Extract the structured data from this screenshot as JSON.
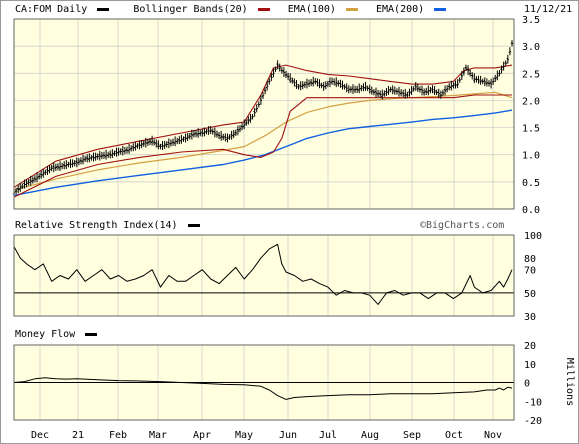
{
  "header": {
    "symbol_label": "CA:FOM Daily",
    "bb_label": "Bollinger Bands(20)",
    "ema100_label": "EMA(100)",
    "ema200_label": "EMA(200)",
    "date": "11/12/21"
  },
  "rsi_panel": {
    "title": "Relative Strength Index(14)",
    "watermark": "©BigCharts.com"
  },
  "mf_panel": {
    "title": "Money Flow",
    "unit_label": "Millions"
  },
  "colors": {
    "price": "#000000",
    "bollinger": "#a01010",
    "ema100": "#d4a040",
    "ema200": "#1060e0",
    "rsi": "#000000",
    "moneyflow": "#000000",
    "panel_bg": "#ffffe0"
  },
  "chart_data": [
    {
      "type": "candlestick",
      "title": "CA:FOM Daily",
      "ylim": [
        0.0,
        3.5
      ],
      "yticks": [
        "0.0",
        "0.5",
        "1.0",
        "1.5",
        "2.0",
        "2.5",
        "3.0",
        "3.5"
      ],
      "x_tick_labels": [
        "Dec",
        "21",
        "Feb",
        "Mar",
        "Apr",
        "May",
        "Jun",
        "Jul",
        "Aug",
        "Sep",
        "Oct",
        "Nov"
      ],
      "grid": true,
      "legend_placement": "top",
      "series": [
        {
          "name": "CA:FOM Daily",
          "kind": "close_points",
          "points": [
            [
              0,
              0.3
            ],
            [
              5,
              0.45
            ],
            [
              10,
              0.55
            ],
            [
              14,
              0.65
            ],
            [
              18,
              0.75
            ],
            [
              22,
              0.78
            ],
            [
              26,
              0.82
            ],
            [
              30,
              0.85
            ],
            [
              34,
              0.92
            ],
            [
              38,
              0.95
            ],
            [
              42,
              0.98
            ],
            [
              46,
              1.0
            ],
            [
              50,
              1.05
            ],
            [
              54,
              1.08
            ],
            [
              58,
              1.15
            ],
            [
              62,
              1.2
            ],
            [
              66,
              1.25
            ],
            [
              70,
              1.15
            ],
            [
              74,
              1.2
            ],
            [
              78,
              1.25
            ],
            [
              82,
              1.3
            ],
            [
              86,
              1.38
            ],
            [
              90,
              1.4
            ],
            [
              94,
              1.45
            ],
            [
              98,
              1.35
            ],
            [
              102,
              1.3
            ],
            [
              106,
              1.4
            ],
            [
              110,
              1.55
            ],
            [
              114,
              1.7
            ],
            [
              118,
              2.0
            ],
            [
              122,
              2.35
            ],
            [
              126,
              2.65
            ],
            [
              128,
              2.55
            ],
            [
              132,
              2.4
            ],
            [
              136,
              2.25
            ],
            [
              140,
              2.3
            ],
            [
              144,
              2.35
            ],
            [
              148,
              2.25
            ],
            [
              152,
              2.35
            ],
            [
              156,
              2.3
            ],
            [
              160,
              2.2
            ],
            [
              164,
              2.2
            ],
            [
              168,
              2.25
            ],
            [
              172,
              2.15
            ],
            [
              176,
              2.1
            ],
            [
              180,
              2.2
            ],
            [
              184,
              2.15
            ],
            [
              188,
              2.1
            ],
            [
              192,
              2.25
            ],
            [
              196,
              2.15
            ],
            [
              200,
              2.2
            ],
            [
              204,
              2.1
            ],
            [
              208,
              2.25
            ],
            [
              212,
              2.3
            ],
            [
              216,
              2.6
            ],
            [
              220,
              2.4
            ],
            [
              224,
              2.35
            ],
            [
              228,
              2.3
            ],
            [
              232,
              2.5
            ],
            [
              236,
              2.75
            ],
            [
              238,
              3.05
            ]
          ]
        },
        {
          "name": "Bollinger Bands(20) upper",
          "points": [
            [
              0,
              0.4
            ],
            [
              20,
              0.88
            ],
            [
              40,
              1.1
            ],
            [
              60,
              1.25
            ],
            [
              80,
              1.4
            ],
            [
              100,
              1.55
            ],
            [
              110,
              1.6
            ],
            [
              118,
              2.1
            ],
            [
              124,
              2.6
            ],
            [
              130,
              2.65
            ],
            [
              140,
              2.55
            ],
            [
              150,
              2.48
            ],
            [
              160,
              2.45
            ],
            [
              170,
              2.4
            ],
            [
              180,
              2.35
            ],
            [
              190,
              2.3
            ],
            [
              200,
              2.3
            ],
            [
              210,
              2.35
            ],
            [
              215,
              2.55
            ],
            [
              220,
              2.6
            ],
            [
              230,
              2.6
            ],
            [
              238,
              2.65
            ]
          ]
        },
        {
          "name": "Bollinger Bands(20) lower",
          "points": [
            [
              0,
              0.22
            ],
            [
              20,
              0.6
            ],
            [
              40,
              0.82
            ],
            [
              60,
              0.95
            ],
            [
              80,
              1.05
            ],
            [
              100,
              1.1
            ],
            [
              110,
              1.0
            ],
            [
              118,
              0.95
            ],
            [
              124,
              1.05
            ],
            [
              128,
              1.3
            ],
            [
              132,
              1.8
            ],
            [
              140,
              2.05
            ],
            [
              150,
              2.05
            ],
            [
              160,
              2.05
            ],
            [
              170,
              2.05
            ],
            [
              180,
              2.05
            ],
            [
              190,
              2.05
            ],
            [
              200,
              2.05
            ],
            [
              210,
              2.05
            ],
            [
              220,
              2.1
            ],
            [
              230,
              2.1
            ],
            [
              238,
              2.1
            ]
          ]
        },
        {
          "name": "EMA(100)",
          "points": [
            [
              0,
              0.35
            ],
            [
              20,
              0.55
            ],
            [
              40,
              0.72
            ],
            [
              60,
              0.85
            ],
            [
              80,
              0.95
            ],
            [
              100,
              1.08
            ],
            [
              110,
              1.15
            ],
            [
              120,
              1.35
            ],
            [
              130,
              1.6
            ],
            [
              140,
              1.78
            ],
            [
              150,
              1.88
            ],
            [
              160,
              1.95
            ],
            [
              170,
              2.0
            ],
            [
              180,
              2.03
            ],
            [
              190,
              2.05
            ],
            [
              200,
              2.07
            ],
            [
              210,
              2.09
            ],
            [
              220,
              2.12
            ],
            [
              230,
              2.15
            ],
            [
              238,
              2.05
            ]
          ]
        },
        {
          "name": "EMA(200)",
          "points": [
            [
              0,
              0.25
            ],
            [
              20,
              0.4
            ],
            [
              40,
              0.52
            ],
            [
              60,
              0.62
            ],
            [
              80,
              0.72
            ],
            [
              100,
              0.82
            ],
            [
              110,
              0.9
            ],
            [
              120,
              1.0
            ],
            [
              130,
              1.15
            ],
            [
              140,
              1.3
            ],
            [
              150,
              1.4
            ],
            [
              160,
              1.48
            ],
            [
              170,
              1.52
            ],
            [
              180,
              1.56
            ],
            [
              190,
              1.6
            ],
            [
              200,
              1.65
            ],
            [
              210,
              1.68
            ],
            [
              220,
              1.72
            ],
            [
              230,
              1.77
            ],
            [
              238,
              1.82
            ]
          ]
        }
      ]
    },
    {
      "type": "line",
      "title": "Relative Strength Index(14)",
      "ylim": [
        0,
        100
      ],
      "yticks": [
        "30",
        "50",
        "70",
        "80",
        "100"
      ],
      "reference_line": 50,
      "series": [
        {
          "name": "Relative Strength Index(14)",
          "points": [
            [
              0,
              90
            ],
            [
              3,
              80
            ],
            [
              6,
              75
            ],
            [
              10,
              70
            ],
            [
              14,
              75
            ],
            [
              18,
              60
            ],
            [
              22,
              65
            ],
            [
              26,
              62
            ],
            [
              30,
              70
            ],
            [
              34,
              60
            ],
            [
              38,
              65
            ],
            [
              42,
              70
            ],
            [
              46,
              62
            ],
            [
              50,
              65
            ],
            [
              54,
              60
            ],
            [
              58,
              62
            ],
            [
              62,
              65
            ],
            [
              66,
              70
            ],
            [
              70,
              55
            ],
            [
              74,
              65
            ],
            [
              78,
              60
            ],
            [
              82,
              60
            ],
            [
              86,
              65
            ],
            [
              90,
              70
            ],
            [
              94,
              62
            ],
            [
              98,
              58
            ],
            [
              102,
              65
            ],
            [
              106,
              72
            ],
            [
              110,
              62
            ],
            [
              114,
              70
            ],
            [
              118,
              80
            ],
            [
              122,
              88
            ],
            [
              126,
              92
            ],
            [
              128,
              75
            ],
            [
              130,
              68
            ],
            [
              134,
              65
            ],
            [
              138,
              60
            ],
            [
              142,
              62
            ],
            [
              146,
              58
            ],
            [
              150,
              55
            ],
            [
              154,
              48
            ],
            [
              158,
              52
            ],
            [
              162,
              50
            ],
            [
              166,
              50
            ],
            [
              170,
              48
            ],
            [
              174,
              40
            ],
            [
              178,
              50
            ],
            [
              182,
              52
            ],
            [
              186,
              48
            ],
            [
              190,
              50
            ],
            [
              194,
              50
            ],
            [
              198,
              45
            ],
            [
              202,
              50
            ],
            [
              206,
              50
            ],
            [
              210,
              45
            ],
            [
              214,
              50
            ],
            [
              218,
              65
            ],
            [
              220,
              55
            ],
            [
              224,
              50
            ],
            [
              228,
              52
            ],
            [
              232,
              60
            ],
            [
              234,
              55
            ],
            [
              236,
              62
            ],
            [
              238,
              70
            ]
          ]
        }
      ]
    },
    {
      "type": "line",
      "title": "Money Flow",
      "ylabel": "Millions",
      "ylim": [
        -20,
        20
      ],
      "yticks": [
        "20",
        "10",
        "0",
        "-10",
        "-20"
      ],
      "reference_line": 0,
      "series": [
        {
          "name": "Money Flow",
          "points": [
            [
              0,
              0
            ],
            [
              5,
              0.5
            ],
            [
              10,
              2
            ],
            [
              15,
              2.5
            ],
            [
              20,
              2
            ],
            [
              25,
              1.8
            ],
            [
              30,
              2
            ],
            [
              40,
              1.5
            ],
            [
              50,
              1
            ],
            [
              60,
              0.8
            ],
            [
              70,
              0.5
            ],
            [
              80,
              0
            ],
            [
              90,
              -0.5
            ],
            [
              100,
              -1
            ],
            [
              110,
              -1.2
            ],
            [
              118,
              -2
            ],
            [
              122,
              -4
            ],
            [
              126,
              -7
            ],
            [
              130,
              -9
            ],
            [
              134,
              -8
            ],
            [
              140,
              -7.5
            ],
            [
              150,
              -7
            ],
            [
              160,
              -6.5
            ],
            [
              170,
              -6.5
            ],
            [
              180,
              -6
            ],
            [
              190,
              -6
            ],
            [
              200,
              -6
            ],
            [
              210,
              -5.5
            ],
            [
              220,
              -5
            ],
            [
              226,
              -4
            ],
            [
              230,
              -4
            ],
            [
              232,
              -3
            ],
            [
              234,
              -4
            ],
            [
              236,
              -2.5
            ],
            [
              238,
              -3
            ]
          ]
        }
      ]
    }
  ]
}
